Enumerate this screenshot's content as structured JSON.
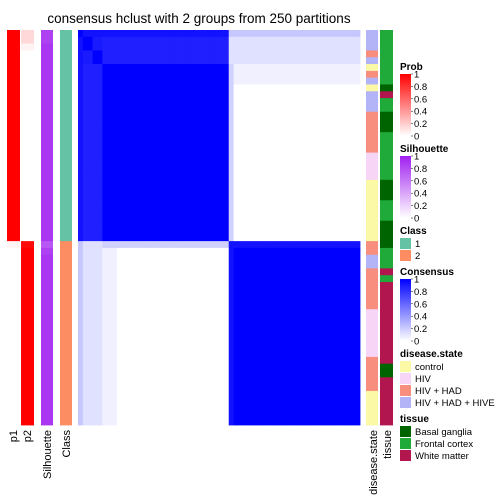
{
  "chart_data": {
    "type": "heatmap",
    "title": "consensus hclust with 2 groups from 250 partitions",
    "n_samples": 58,
    "cluster_sizes": [
      31,
      27
    ],
    "annotation_columns": [
      "p1",
      "p2",
      "Silhouette",
      "Class"
    ],
    "right_annotation_columns": [
      "disease.state",
      "tissue"
    ],
    "row_profile": {
      "p1": [
        1,
        1,
        1,
        1,
        1,
        1,
        1,
        1,
        1,
        1,
        1,
        1,
        1,
        1,
        1,
        1,
        1,
        1,
        1,
        1,
        1,
        1,
        1,
        1,
        1,
        1,
        1,
        1,
        1,
        1,
        1,
        0.04,
        0,
        0,
        0,
        0,
        0,
        0,
        0,
        0,
        0,
        0,
        0,
        0,
        0,
        0,
        0,
        0,
        0,
        0,
        0,
        0,
        0,
        0,
        0,
        0,
        0,
        0
      ],
      "p2": [
        0.15,
        0.15,
        0.05,
        0,
        0,
        0,
        0,
        0,
        0,
        0,
        0,
        0,
        0,
        0,
        0,
        0,
        0,
        0,
        0,
        0,
        0,
        0,
        0,
        0,
        0,
        0,
        0,
        0,
        0,
        0,
        0,
        0.96,
        1,
        1,
        1,
        1,
        1,
        1,
        1,
        1,
        1,
        1,
        1,
        1,
        1,
        1,
        1,
        1,
        1,
        1,
        1,
        1,
        1,
        1,
        1,
        1,
        1,
        1
      ],
      "silhouette": [
        0.85,
        0.85,
        0.9,
        0.9,
        0.9,
        0.9,
        0.9,
        0.9,
        0.9,
        0.9,
        0.9,
        0.9,
        0.9,
        0.9,
        0.9,
        0.9,
        0.9,
        0.9,
        0.9,
        0.9,
        0.9,
        0.9,
        0.9,
        0.9,
        0.9,
        0.9,
        0.9,
        0.9,
        0.9,
        0.9,
        0.9,
        0.75,
        0.85,
        0.9,
        0.9,
        0.9,
        0.9,
        0.9,
        0.9,
        0.9,
        0.9,
        0.9,
        0.9,
        0.9,
        0.9,
        0.9,
        0.9,
        0.9,
        0.9,
        0.9,
        0.9,
        0.9,
        0.9,
        0.9,
        0.9,
        0.9,
        0.9,
        0.9
      ],
      "class": [
        1,
        1,
        1,
        1,
        1,
        1,
        1,
        1,
        1,
        1,
        1,
        1,
        1,
        1,
        1,
        1,
        1,
        1,
        1,
        1,
        1,
        1,
        1,
        1,
        1,
        1,
        1,
        1,
        1,
        1,
        1,
        2,
        2,
        2,
        2,
        2,
        2,
        2,
        2,
        2,
        2,
        2,
        2,
        2,
        2,
        2,
        2,
        2,
        2,
        2,
        2,
        2,
        2,
        2,
        2,
        2,
        2,
        2
      ],
      "disease_state": [
        "hiv_hive",
        "hiv_hive",
        "hiv_hive",
        "hiv_had",
        "hiv_hive",
        "control",
        "hiv_had",
        "hiv_hive",
        "control",
        "hiv_hive",
        "hiv_hive",
        "hiv_hive",
        "hiv_had",
        "hiv_had",
        "hiv_had",
        "hiv_had",
        "hiv_had",
        "hiv_had",
        "hiv",
        "hiv",
        "hiv",
        "hiv",
        "control",
        "control",
        "control",
        "control",
        "control",
        "control",
        "control",
        "control",
        "control",
        "hiv_had",
        "hiv_had",
        "hiv_hive",
        "hiv_hive",
        "hiv_had",
        "hiv_had",
        "hiv_had",
        "hiv_had",
        "hiv_had",
        "hiv_had",
        "hiv",
        "hiv",
        "hiv",
        "hiv",
        "hiv",
        "hiv",
        "hiv",
        "hiv_had",
        "hiv_had",
        "hiv_had",
        "hiv_had",
        "hiv_had",
        "control",
        "control",
        "control",
        "control",
        "control"
      ],
      "tissue": [
        "frontal",
        "frontal",
        "frontal",
        "frontal",
        "frontal",
        "frontal",
        "frontal",
        "frontal",
        "basal",
        "white",
        "frontal",
        "frontal",
        "basal",
        "basal",
        "basal",
        "frontal",
        "frontal",
        "frontal",
        "frontal",
        "frontal",
        "frontal",
        "frontal",
        "basal",
        "basal",
        "basal",
        "frontal",
        "frontal",
        "frontal",
        "basal",
        "basal",
        "basal",
        "basal",
        "frontal",
        "frontal",
        "frontal",
        "white",
        "frontal",
        "white",
        "white",
        "white",
        "white",
        "white",
        "white",
        "white",
        "white",
        "white",
        "white",
        "white",
        "white",
        "basal",
        "basal",
        "white",
        "white",
        "white",
        "white",
        "white",
        "white",
        "white"
      ]
    },
    "consensus_matrix": {
      "description": "Symmetric consensus matrix ordered by hierarchical clustering, values in [0,1].",
      "block_structure": [
        {
          "rows": "1-31",
          "cols": "1-31",
          "value_range": [
            0.85,
            1.0
          ]
        },
        {
          "rows": "32-58",
          "cols": "32-58",
          "value_range": [
            0.95,
            1.0
          ]
        },
        {
          "rows": "1-31",
          "cols": "32-58",
          "value_range": [
            0.0,
            0.25
          ]
        },
        {
          "rows": "32-58",
          "cols": "1-31",
          "value_range": [
            0.0,
            0.25
          ]
        }
      ]
    },
    "legends": [
      {
        "title": "Prob",
        "ticks": [
          "1",
          "0.8",
          "0.6",
          "0.4",
          "0.2",
          "0"
        ],
        "low_color": "#ffffff",
        "high_color": "#ff0000"
      },
      {
        "title": "Silhouette",
        "ticks": [
          "1",
          "0.8",
          "0.6",
          "0.4",
          "0.2",
          "0"
        ],
        "low_color": "#ffffff",
        "high_color": "#a020f0"
      },
      {
        "title": "Class",
        "items": [
          {
            "label": "1",
            "color": "#66c2a5"
          },
          {
            "label": "2",
            "color": "#fc8d62"
          }
        ]
      },
      {
        "title": "Consensus",
        "ticks": [
          "1",
          "0.8",
          "0.6",
          "0.4",
          "0.2",
          "0"
        ],
        "low_color": "#ffffff",
        "high_color": "#0000ff"
      },
      {
        "title": "disease.state",
        "items": [
          {
            "label": "control",
            "color": "#fbf9a5"
          },
          {
            "label": "HIV",
            "color": "#f6d5f6"
          },
          {
            "label": "HIV + HAD",
            "color": "#f78e7e"
          },
          {
            "label": "HIV + HAD + HIVE",
            "color": "#b3b3f7"
          }
        ]
      },
      {
        "title": "tissue",
        "items": [
          {
            "label": "Basal ganglia",
            "color": "#006400"
          },
          {
            "label": "Frontal cortex",
            "color": "#1faa3a"
          },
          {
            "label": "White matter",
            "color": "#b2164f"
          }
        ]
      }
    ],
    "colors": {
      "prob_high": "#ff0000",
      "silhouette_high": "#a020f0",
      "consensus_high": "#0000ff",
      "class_1": "#66c2a5",
      "class_2": "#fc8d62",
      "control": "#fbf9a5",
      "hiv": "#f6d5f6",
      "hiv_had": "#f78e7e",
      "hiv_hive": "#b3b3f7",
      "basal": "#006400",
      "frontal": "#1faa3a",
      "white": "#b2164f"
    }
  }
}
